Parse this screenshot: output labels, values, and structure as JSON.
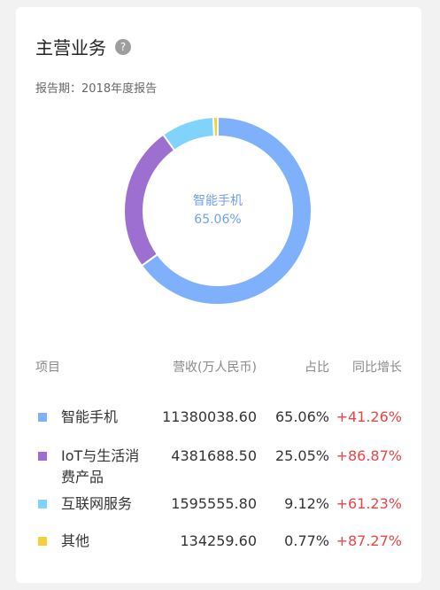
{
  "card": {
    "title": "主营业务",
    "help_icon": "?",
    "period": "报告期：2018年度报告"
  },
  "chart_data": {
    "type": "pie",
    "center_label": "智能手机",
    "center_value": "65.06%",
    "categories": [
      "智能手机",
      "IoT与生活消费产品",
      "互联网服务",
      "其他"
    ],
    "values": [
      65.06,
      25.05,
      9.12,
      0.77
    ],
    "colors": [
      "#7fb0fb",
      "#9c6fd0",
      "#80d4fb",
      "#f5cf3e"
    ]
  },
  "table": {
    "headers": [
      "项目",
      "营收(万人民币)",
      "占比",
      "同比增长"
    ],
    "rows": [
      {
        "name": "智能手机",
        "revenue": "11380038.60",
        "share": "65.06%",
        "yoy": "+41.26%",
        "color": "#7fb0fb"
      },
      {
        "name": "IoT与生活消费产品",
        "revenue": "4381688.50",
        "share": "25.05%",
        "yoy": "+86.87%",
        "color": "#9c6fd0"
      },
      {
        "name": "互联网服务",
        "revenue": "1595555.80",
        "share": "9.12%",
        "yoy": "+61.23%",
        "color": "#80d4fb"
      },
      {
        "name": "其他",
        "revenue": "134259.60",
        "share": "0.77%",
        "yoy": "+87.27%",
        "color": "#f5cf3e"
      }
    ]
  }
}
